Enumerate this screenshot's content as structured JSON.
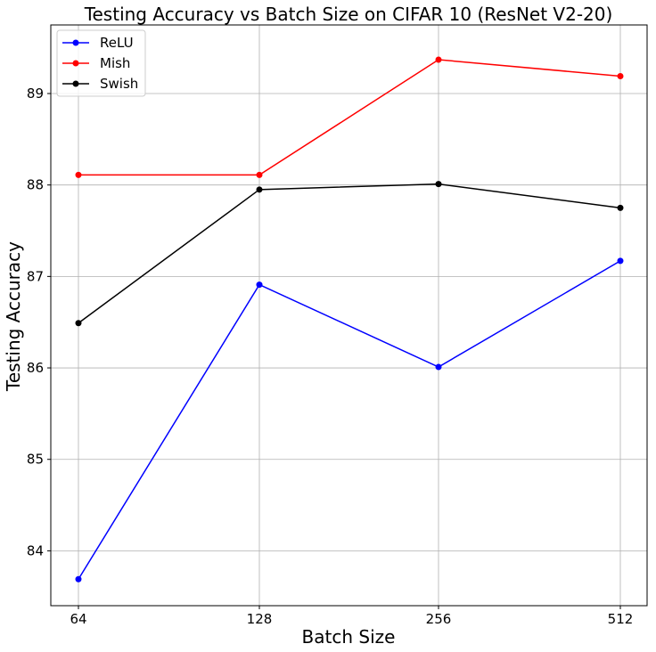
{
  "chart_data": {
    "type": "line",
    "title": "Testing Accuracy vs Batch Size on CIFAR 10 (ResNet V2-20)",
    "xlabel": "Batch Size",
    "ylabel": "Testing Accuracy",
    "categories": [
      "64",
      "128",
      "256",
      "512"
    ],
    "ylim": [
      83.4,
      89.75
    ],
    "yticks": [
      84,
      85,
      86,
      87,
      88,
      89
    ],
    "grid": true,
    "legend_position": "top-left",
    "series": [
      {
        "name": "ReLU",
        "color": "#0000ff",
        "values": [
          83.69,
          86.91,
          86.01,
          87.17
        ]
      },
      {
        "name": "Mish",
        "color": "#ff0000",
        "values": [
          88.11,
          88.11,
          89.37,
          89.19
        ]
      },
      {
        "name": "Swish",
        "color": "#000000",
        "values": [
          86.49,
          87.95,
          88.01,
          87.75
        ]
      }
    ]
  }
}
